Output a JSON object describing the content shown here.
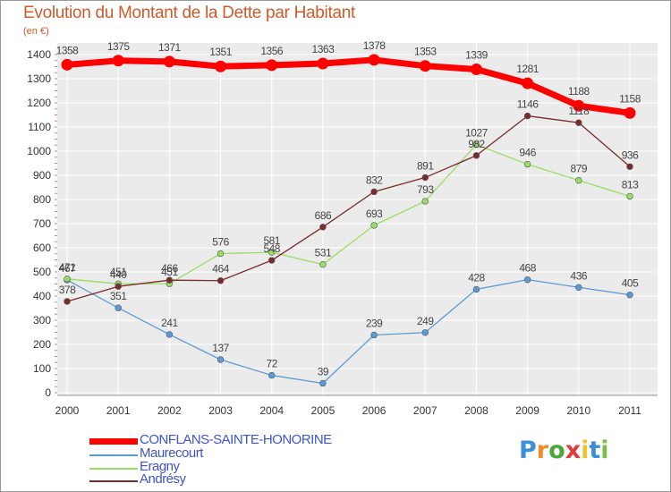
{
  "chart_data": {
    "type": "line",
    "title": "Evolution du Montant de la Dette par Habitant",
    "ylabel": "(en €)",
    "xlabel": "",
    "ylim": [
      0,
      1400
    ],
    "yticks": [
      "0",
      "100",
      "200",
      "300",
      "400",
      "500",
      "600",
      "700",
      "800",
      "900",
      "1000",
      "1100",
      "1200",
      "1300",
      "1400"
    ],
    "categories": [
      "2000",
      "2001",
      "2002",
      "2003",
      "2004",
      "2005",
      "2006",
      "2007",
      "2008",
      "2009",
      "2010",
      "2011"
    ],
    "series": [
      {
        "name": "CONFLANS-SAINTE-HONORINE",
        "color": "#ff0000",
        "values": [
          1358,
          1375,
          1371,
          1351,
          1356,
          1363,
          1378,
          1353,
          1339,
          1281,
          1188,
          1158
        ]
      },
      {
        "name": "Maurecourt",
        "color": "#5b9bd5",
        "values": [
          467,
          351,
          241,
          137,
          72,
          39,
          239,
          249,
          428,
          468,
          436,
          405
        ]
      },
      {
        "name": "Eragny",
        "color": "#99dd66",
        "values": [
          471,
          451,
          451,
          576,
          581,
          531,
          693,
          793,
          1027,
          946,
          879,
          813
        ]
      },
      {
        "name": "Andrésy",
        "color": "#7b2b2b",
        "values": [
          378,
          440,
          466,
          464,
          548,
          686,
          832,
          891,
          982,
          1146,
          1118,
          936
        ]
      }
    ],
    "grid": true,
    "legend_position": "bottom-left"
  },
  "brand": {
    "letters": [
      "P",
      "r",
      "o",
      "x",
      "i",
      "t",
      "i"
    ],
    "colors": [
      "#3a8fd6",
      "#f28c28",
      "#4aa838",
      "#e23b3b",
      "#f2c12e",
      "#3a8fd6",
      "#7ac143"
    ]
  }
}
